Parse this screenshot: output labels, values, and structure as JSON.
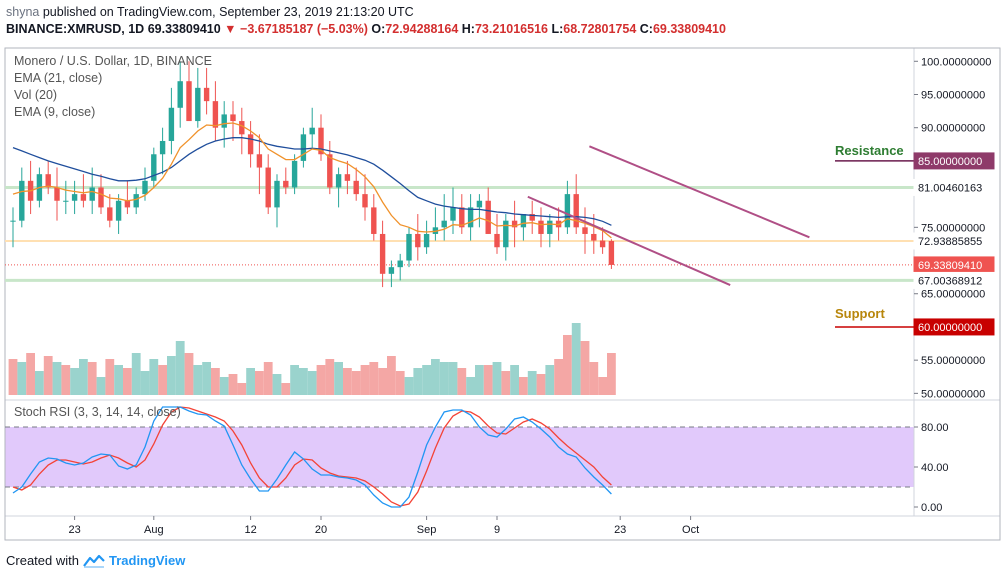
{
  "header": {
    "user": "shyna",
    "published": "published on TradingView.com, September 23, 2019 21:13:20 UTC",
    "symbol": "BINANCE:XMRUSD, 1D",
    "last": "69.33809410",
    "change": "−3.67185187 (−5.03%)",
    "o_label": "O:",
    "o": "72.94288164",
    "h_label": "H:",
    "h": "73.21016516",
    "l_label": "L:",
    "l": "68.72801754",
    "c_label": "C:",
    "c": "69.33809410"
  },
  "legend": {
    "title": "Monero / U.S. Dollar, 1D, BINANCE",
    "ema21": "EMA (21, close)",
    "vol": "Vol (20)",
    "ema9": "EMA (9, close)",
    "rsi": "Stoch RSI (3, 3, 14, 14, close)"
  },
  "annotations": {
    "resistance": "Resistance",
    "support": "Support"
  },
  "colors": {
    "up": "#26a69a",
    "down": "#ef5350",
    "up_vol": "#9ad3cd",
    "down_vol": "#f4a7a5",
    "ema21": "#1f4e9c",
    "ema9": "#f0922b",
    "rsi_k": "#2196f3",
    "rsi_d": "#f44336",
    "rsi_band": "#e1c9fb",
    "trend": "#b04f86",
    "resistance": "#2e7d32",
    "support": "#b8860b"
  },
  "chart_data": {
    "type": "candlestick",
    "price_axis": {
      "range": [
        49.0,
        102.0
      ],
      "ticks": [
        "100.00000000",
        "95.00000000",
        "90.00000000",
        "75.00000000",
        "65.00000000",
        "55.00000000",
        "50.00000000"
      ]
    },
    "x_axis": {
      "ticks": [
        {
          "label": "23",
          "i": 7
        },
        {
          "label": "Aug",
          "i": 16
        },
        {
          "label": "12",
          "i": 27
        },
        {
          "label": "20",
          "i": 35
        },
        {
          "label": "Sep",
          "i": 47
        },
        {
          "label": "9",
          "i": 55
        },
        {
          "label": "23",
          "i": 69
        },
        {
          "label": "Oct",
          "i": 77
        }
      ]
    },
    "price_labels": [
      {
        "value": 85.0,
        "text": "85.00000000",
        "bg": "#8e3a69",
        "fg": "#ffffff"
      },
      {
        "value": 81.00460163,
        "text": "81.00460163",
        "bg": "#ffffff",
        "fg": "#131722"
      },
      {
        "value": 72.93885855,
        "text": "72.93885855",
        "bg": "#ffffff",
        "fg": "#131722"
      },
      {
        "value": 69.3380941,
        "text": "69.33809410",
        "bg": "#ef5350",
        "fg": "#ffffff"
      },
      {
        "value": 67.00368912,
        "text": "67.00368912",
        "bg": "#ffffff",
        "fg": "#131722"
      },
      {
        "value": 60.0,
        "text": "60.00000000",
        "bg": "#c80000",
        "fg": "#ffffff"
      }
    ],
    "levels": {
      "resistance": 85.0,
      "support": 60.0,
      "upper_band": 81.00460163,
      "lower_band": 67.00368912,
      "ema_level": 72.93885855,
      "last": 69.3380941
    },
    "candles": [
      [
        76,
        78,
        72,
        76
      ],
      [
        76,
        84,
        75,
        82
      ],
      [
        82,
        85,
        77,
        79
      ],
      [
        79,
        84,
        78,
        83
      ],
      [
        83,
        85,
        80,
        81
      ],
      [
        81,
        84,
        76,
        79
      ],
      [
        79,
        82,
        77,
        79
      ],
      [
        79,
        82,
        77,
        80
      ],
      [
        80,
        83,
        78,
        79
      ],
      [
        79,
        84,
        77,
        81
      ],
      [
        81,
        83,
        77,
        78
      ],
      [
        78,
        80,
        75,
        76
      ],
      [
        76,
        80,
        74,
        79
      ],
      [
        79,
        82,
        77,
        78
      ],
      [
        78,
        81,
        77,
        80
      ],
      [
        80,
        84,
        79,
        82
      ],
      [
        82,
        87,
        81,
        86
      ],
      [
        86,
        90,
        83,
        88
      ],
      [
        88,
        96,
        86,
        93
      ],
      [
        93,
        100,
        90,
        97
      ],
      [
        97,
        100,
        91,
        91
      ],
      [
        91,
        99,
        90,
        96
      ],
      [
        96,
        99,
        92,
        94
      ],
      [
        94,
        97,
        88,
        90
      ],
      [
        90,
        94,
        87,
        92
      ],
      [
        92,
        94,
        88,
        91
      ],
      [
        91,
        93,
        86,
        89
      ],
      [
        89,
        91,
        84,
        86
      ],
      [
        86,
        89,
        80,
        84
      ],
      [
        84,
        86,
        77,
        78
      ],
      [
        78,
        83,
        75,
        82
      ],
      [
        82,
        84,
        80,
        81
      ],
      [
        81,
        86,
        80,
        85
      ],
      [
        85,
        90,
        84,
        89
      ],
      [
        89,
        93,
        87,
        90
      ],
      [
        90,
        92,
        85,
        86
      ],
      [
        86,
        88,
        80,
        81
      ],
      [
        81,
        84,
        78,
        83
      ],
      [
        83,
        85,
        80,
        82
      ],
      [
        82,
        84,
        79,
        80
      ],
      [
        80,
        83,
        76,
        78
      ],
      [
        78,
        80,
        73,
        74
      ],
      [
        74,
        76,
        66,
        68
      ],
      [
        68,
        70,
        66,
        69
      ],
      [
        69,
        71,
        67,
        70
      ],
      [
        70,
        75,
        69,
        74
      ],
      [
        74,
        77,
        70,
        72
      ],
      [
        72,
        76,
        71,
        74
      ],
      [
        74,
        78,
        73,
        75
      ],
      [
        75,
        80,
        73,
        76
      ],
      [
        76,
        81,
        74,
        78
      ],
      [
        78,
        80,
        74,
        75
      ],
      [
        75,
        80,
        73,
        78
      ],
      [
        78,
        80,
        75,
        79
      ],
      [
        79,
        81,
        74,
        74
      ],
      [
        74,
        77,
        71,
        72
      ],
      [
        72,
        77,
        70,
        76
      ],
      [
        76,
        79,
        72,
        75
      ],
      [
        75,
        77,
        73,
        77
      ],
      [
        77,
        79,
        74,
        76
      ],
      [
        76,
        78,
        72,
        74
      ],
      [
        74,
        77,
        72,
        76
      ],
      [
        76,
        78,
        73,
        75
      ],
      [
        75,
        82,
        74,
        80
      ],
      [
        80,
        83,
        74,
        75
      ],
      [
        75,
        78,
        71,
        74
      ],
      [
        74,
        77,
        71,
        73
      ],
      [
        73,
        75,
        71,
        72
      ],
      [
        72.94,
        73.21,
        68.73,
        69.34
      ]
    ],
    "volume": [
      [
        46,
        0
      ],
      [
        45,
        1
      ],
      [
        48,
        0
      ],
      [
        42,
        1
      ],
      [
        47,
        0
      ],
      [
        45,
        1
      ],
      [
        44,
        0
      ],
      [
        43,
        1
      ],
      [
        46,
        1
      ],
      [
        45,
        0
      ],
      [
        40,
        1
      ],
      [
        46,
        0
      ],
      [
        44,
        1
      ],
      [
        43,
        0
      ],
      [
        48,
        1
      ],
      [
        42,
        1
      ],
      [
        46,
        1
      ],
      [
        44,
        0
      ],
      [
        47,
        1
      ],
      [
        52,
        1
      ],
      [
        48,
        0
      ],
      [
        44,
        1
      ],
      [
        45,
        1
      ],
      [
        43,
        0
      ],
      [
        40,
        1
      ],
      [
        41,
        0
      ],
      [
        38,
        0
      ],
      [
        43,
        1
      ],
      [
        42,
        0
      ],
      [
        45,
        0
      ],
      [
        41,
        1
      ],
      [
        38,
        0
      ],
      [
        44,
        1
      ],
      [
        43,
        1
      ],
      [
        42,
        1
      ],
      [
        44,
        0
      ],
      [
        46,
        0
      ],
      [
        45,
        1
      ],
      [
        43,
        0
      ],
      [
        42,
        0
      ],
      [
        44,
        0
      ],
      [
        45,
        0
      ],
      [
        43,
        0
      ],
      [
        47,
        0
      ],
      [
        42,
        0
      ],
      [
        40,
        1
      ],
      [
        43,
        1
      ],
      [
        44,
        1
      ],
      [
        46,
        1
      ],
      [
        45,
        1
      ],
      [
        45,
        1
      ],
      [
        43,
        0
      ],
      [
        40,
        1
      ],
      [
        44,
        1
      ],
      [
        44,
        0
      ],
      [
        45,
        1
      ],
      [
        42,
        0
      ],
      [
        44,
        1
      ],
      [
        40,
        0
      ],
      [
        42,
        1
      ],
      [
        41,
        0
      ],
      [
        44,
        1
      ],
      [
        46,
        0
      ],
      [
        54,
        0
      ],
      [
        58,
        1
      ],
      [
        52,
        0
      ],
      [
        45,
        0
      ],
      [
        40,
        0
      ],
      [
        48,
        0
      ]
    ],
    "ema21": [
      87,
      86.5,
      86,
      85.5,
      85,
      84.6,
      84.2,
      83.8,
      83.4,
      83,
      82.7,
      82.3,
      82,
      82,
      82.1,
      82.3,
      82.8,
      83.3,
      84,
      85,
      86,
      86.8,
      87.5,
      88,
      88.3,
      88.5,
      88.5,
      88.3,
      88,
      87.5,
      87.2,
      87,
      86.8,
      86.8,
      86.9,
      86.8,
      86.5,
      86.2,
      85.9,
      85.5,
      85.1,
      84.5,
      83.6,
      82.6,
      81.6,
      80.5,
      79.5,
      79,
      78.5,
      78.2,
      78,
      77.8,
      77.7,
      77.7,
      77.5,
      77.3,
      77.2,
      77,
      76.9,
      76.8,
      76.7,
      76.6,
      76.5,
      76.6,
      76.6,
      76.5,
      76.3,
      75.9,
      75.3
    ],
    "ema9": [
      80,
      80.4,
      80.5,
      81,
      81.2,
      81,
      80.6,
      80.4,
      80.2,
      80.4,
      80,
      79.4,
      79.3,
      79,
      79.2,
      79.8,
      81,
      82.4,
      84.5,
      87,
      88.2,
      89.5,
      90.4,
      90.3,
      90.6,
      90.7,
      90.3,
      89.5,
      88.5,
      86.8,
      86,
      85.2,
      85.2,
      86,
      86.8,
      86.6,
      85.5,
      85,
      84.6,
      83.7,
      82.6,
      81.1,
      78.8,
      76.8,
      75.4,
      75,
      74.4,
      74.3,
      74.4,
      74.7,
      75.4,
      75.3,
      75.8,
      76.4,
      76,
      75.2,
      75.3,
      75.2,
      75.6,
      75.7,
      75.4,
      75.5,
      75.4,
      76.3,
      76,
      75.6,
      75.1,
      74.5,
      73.4
    ],
    "rsi_k": [
      14,
      20,
      33,
      45,
      49,
      48,
      44,
      42,
      44,
      50,
      53,
      52,
      41,
      38,
      42,
      60,
      86,
      100,
      100,
      100,
      96,
      93,
      92,
      86,
      81,
      62,
      42,
      28,
      16,
      16,
      28,
      42,
      55,
      48,
      38,
      32,
      32,
      30,
      29,
      27,
      22,
      12,
      4,
      0,
      0,
      10,
      35,
      62,
      80,
      95,
      97,
      97,
      92,
      80,
      72,
      70,
      78,
      88,
      90,
      85,
      78,
      70,
      60,
      53,
      50,
      39,
      30,
      22,
      13
    ],
    "rsi_d": [
      20,
      17,
      22,
      33,
      42,
      47,
      47,
      45,
      43,
      45,
      49,
      52,
      49,
      44,
      40,
      47,
      63,
      82,
      95,
      100,
      99,
      96,
      93,
      90,
      86,
      76,
      62,
      44,
      29,
      20,
      20,
      29,
      42,
      48,
      47,
      39,
      34,
      31,
      30,
      29,
      26,
      20,
      13,
      5,
      1,
      3,
      15,
      36,
      59,
      79,
      91,
      96,
      95,
      90,
      81,
      74,
      73,
      79,
      85,
      88,
      84,
      78,
      69,
      61,
      54,
      47,
      40,
      30,
      22
    ],
    "rsi_axis": {
      "ticks": [
        "80.00",
        "40.00",
        "0.00"
      ],
      "upper": 80,
      "lower": 20
    }
  }
}
